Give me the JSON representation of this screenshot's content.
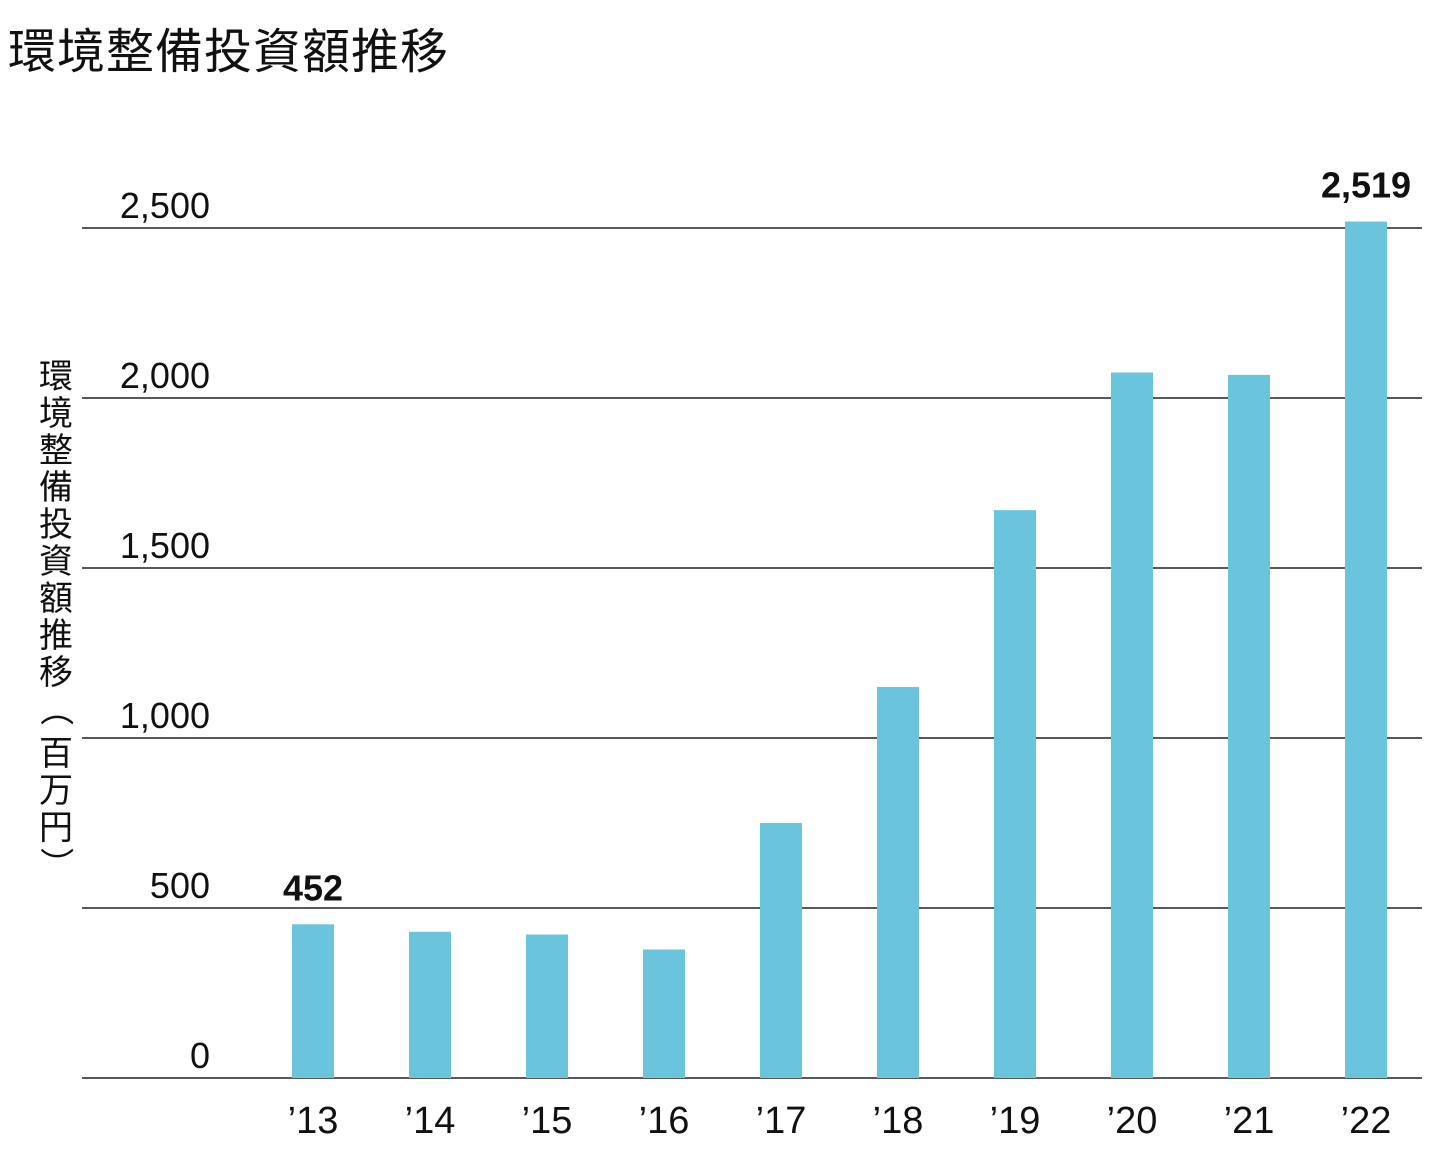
{
  "title": "環境整備投資額推移",
  "chart_data": {
    "type": "bar",
    "title": "環境整備投資額推移",
    "xlabel": "",
    "ylabel": "環境整備投資額推移（百万円）",
    "categories": [
      "’13",
      "’14",
      "’15",
      "’16",
      "’17",
      "’18",
      "’19",
      "’20",
      "’21",
      "’22"
    ],
    "values": [
      452,
      430,
      422,
      378,
      750,
      1150,
      1670,
      2075,
      2068,
      2519
    ],
    "ylim": [
      0,
      2500
    ],
    "yticks": [
      0,
      500,
      1000,
      1500,
      2000,
      2500
    ],
    "ytick_labels": [
      "0",
      "500",
      "1,000",
      "1,500",
      "2,000",
      "2,500"
    ],
    "data_labels": [
      {
        "category": "’13",
        "text": "452"
      },
      {
        "category": "’22",
        "text": "2,519"
      }
    ],
    "grid": true,
    "legend": "none",
    "colors": {
      "bar": "#69c4dc",
      "grid": "#222222",
      "text": "#111111"
    }
  }
}
